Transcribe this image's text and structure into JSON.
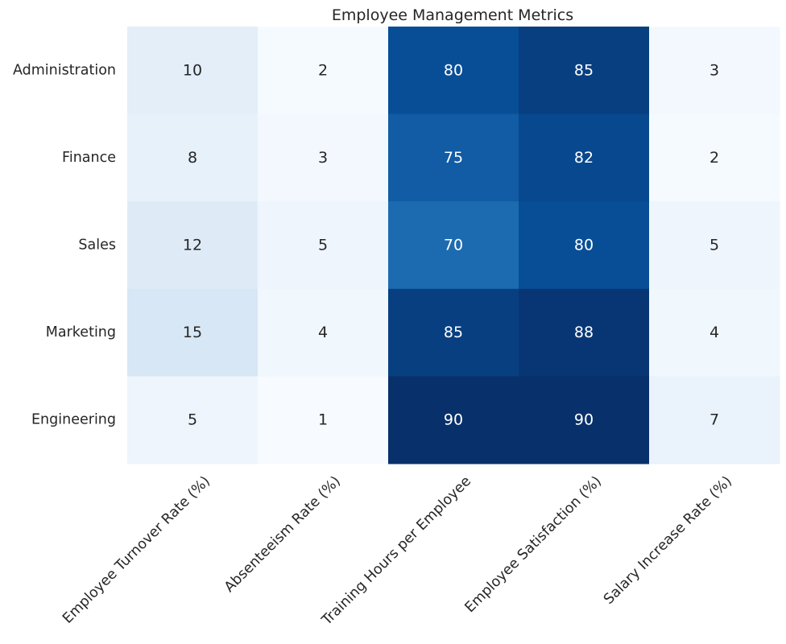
{
  "chart_data": {
    "type": "heatmap",
    "title": "Employee Management Metrics",
    "rows": [
      "Administration",
      "Finance",
      "Sales",
      "Marketing",
      "Engineering"
    ],
    "columns": [
      "Employee Turnover Rate (%)",
      "Absenteeism Rate (%)",
      "Training Hours per Employee",
      "Employee Satisfaction (%)",
      "Salary Increase Rate (%)"
    ],
    "values": [
      [
        10,
        2,
        80,
        85,
        3
      ],
      [
        8,
        3,
        75,
        82,
        2
      ],
      [
        12,
        5,
        70,
        80,
        5
      ],
      [
        15,
        4,
        85,
        88,
        4
      ],
      [
        5,
        1,
        90,
        90,
        7
      ]
    ],
    "value_range": [
      1,
      90
    ],
    "colormap": "Blues",
    "annotations": true,
    "colorbar": false,
    "grid": false
  }
}
